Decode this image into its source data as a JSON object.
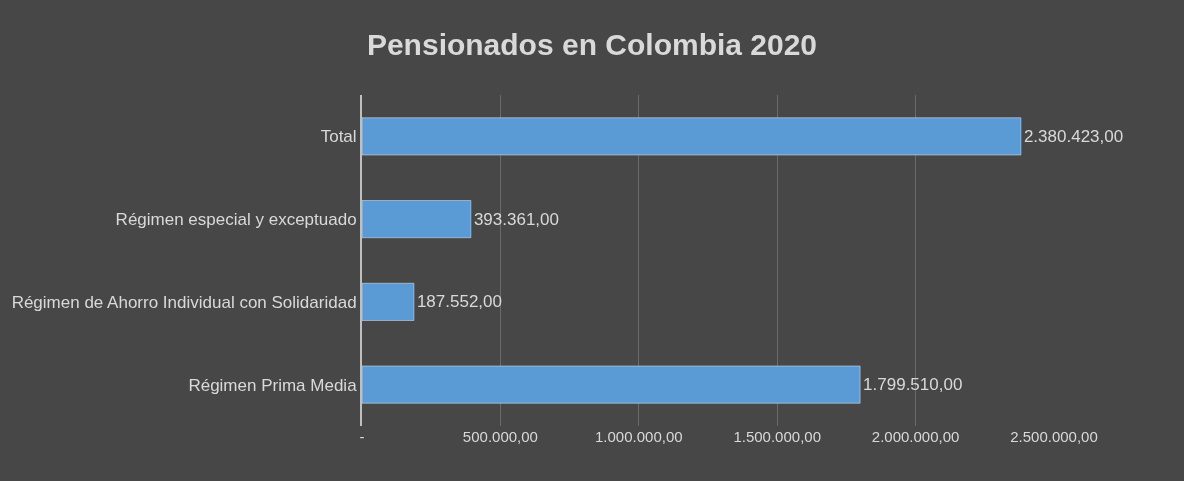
{
  "chart_data": {
    "type": "bar",
    "orientation": "horizontal",
    "title": "Pensionados en Colombia 2020",
    "categories": [
      "Total",
      "Régimen especial y exceptuado",
      "Régimen de Ahorro Individual con Solidaridad",
      "Régimen Prima Media"
    ],
    "values": [
      2380423,
      393361,
      187552,
      1799510
    ],
    "value_labels": [
      "2.380.423,00",
      "393.361,00",
      "187.552,00",
      "1.799.510,00"
    ],
    "color": "#5b9bd5",
    "xlim": [
      0,
      2500000
    ],
    "xticks": [
      {
        "value": 0,
        "label": "-"
      },
      {
        "value": 500000,
        "label": "500.000,00"
      },
      {
        "value": 1000000,
        "label": "1.000.000,00"
      },
      {
        "value": 1500000,
        "label": "1.500.000,00"
      },
      {
        "value": 2000000,
        "label": "2.000.000,00"
      },
      {
        "value": 2500000,
        "label": "2.500.000,00"
      }
    ],
    "grid": "x",
    "legend": false
  }
}
